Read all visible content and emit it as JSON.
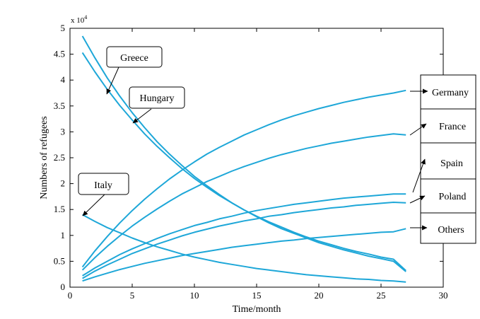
{
  "chart_data": {
    "type": "line",
    "xlabel": "Time/month",
    "ylabel": "Numbers of refugees",
    "y_exponent_label": "x 10",
    "y_exponent_power": "4",
    "xlim": [
      0,
      30
    ],
    "ylim": [
      0,
      50000
    ],
    "x_ticks": [
      "0",
      "5",
      "10",
      "15",
      "20",
      "25",
      "30"
    ],
    "y_ticks": [
      "0",
      "0.5",
      "1",
      "1.5",
      "2",
      "2.5",
      "3",
      "3.5",
      "4",
      "4.5",
      "5"
    ],
    "grid": false,
    "line_color": "#1ea7d8",
    "x": [
      1,
      2,
      3,
      4,
      5,
      6,
      7,
      8,
      9,
      10,
      11,
      12,
      13,
      14,
      15,
      16,
      17,
      18,
      19,
      20,
      21,
      22,
      23,
      24,
      25,
      26,
      27
    ],
    "series": [
      {
        "name": "Greece",
        "values": [
          48500,
          44300,
          40400,
          36900,
          33700,
          30800,
          28100,
          25700,
          23500,
          21400,
          19600,
          17900,
          16300,
          14900,
          13600,
          12400,
          11300,
          10400,
          9500,
          8600,
          7900,
          7200,
          6600,
          6000,
          5500,
          5000,
          3000
        ]
      },
      {
        "name": "Hungary",
        "values": [
          45300,
          41600,
          38200,
          35100,
          32300,
          29600,
          27200,
          25000,
          22900,
          21000,
          19300,
          17700,
          16300,
          14900,
          13700,
          12600,
          11600,
          10600,
          9700,
          8900,
          8200,
          7500,
          6900,
          6400,
          5800,
          5400,
          3200
        ]
      },
      {
        "name": "Italy",
        "values": [
          14000,
          12700,
          11500,
          10500,
          9500,
          8600,
          7800,
          7100,
          6400,
          5800,
          5300,
          4800,
          4400,
          4000,
          3600,
          3300,
          3000,
          2700,
          2400,
          2200,
          2000,
          1800,
          1600,
          1500,
          1300,
          1200,
          1000
        ]
      },
      {
        "name": "Germany",
        "values": [
          3900,
          7000,
          9800,
          12400,
          14800,
          17000,
          19000,
          20900,
          22600,
          24200,
          25700,
          27000,
          28200,
          29400,
          30400,
          31400,
          32300,
          33100,
          33800,
          34500,
          35100,
          35700,
          36200,
          36700,
          37100,
          37500,
          38000
        ]
      },
      {
        "name": "France",
        "values": [
          3300,
          5700,
          7900,
          9900,
          11800,
          13500,
          15100,
          16600,
          18000,
          19200,
          20400,
          21400,
          22400,
          23300,
          24100,
          24900,
          25600,
          26200,
          26800,
          27300,
          27800,
          28200,
          28600,
          29000,
          29300,
          29600,
          29400
        ]
      },
      {
        "name": "Spain",
        "values": [
          2200,
          3700,
          5000,
          6300,
          7400,
          8400,
          9400,
          10300,
          11100,
          11900,
          12500,
          13200,
          13700,
          14300,
          14800,
          15200,
          15600,
          16000,
          16300,
          16600,
          16900,
          17200,
          17400,
          17600,
          17800,
          18000,
          18000
        ]
      },
      {
        "name": "Poland",
        "values": [
          1700,
          3100,
          4300,
          5400,
          6500,
          7400,
          8300,
          9100,
          9900,
          10600,
          11200,
          11800,
          12300,
          12800,
          13200,
          13700,
          14000,
          14400,
          14700,
          15000,
          15300,
          15500,
          15800,
          16000,
          16200,
          16400,
          16300
        ]
      },
      {
        "name": "Others",
        "values": [
          1200,
          2000,
          2700,
          3400,
          4000,
          4600,
          5100,
          5600,
          6100,
          6500,
          6900,
          7300,
          7700,
          8000,
          8300,
          8600,
          8900,
          9100,
          9400,
          9600,
          9800,
          10000,
          10200,
          10400,
          10600,
          10700,
          11300
        ]
      }
    ],
    "annotations": [
      {
        "text": "Greece"
      },
      {
        "text": "Hungary"
      },
      {
        "text": "Italy"
      },
      {
        "text": "Germany"
      },
      {
        "text": "France"
      },
      {
        "text": "Spain"
      },
      {
        "text": "Poland"
      },
      {
        "text": "Others"
      }
    ]
  }
}
